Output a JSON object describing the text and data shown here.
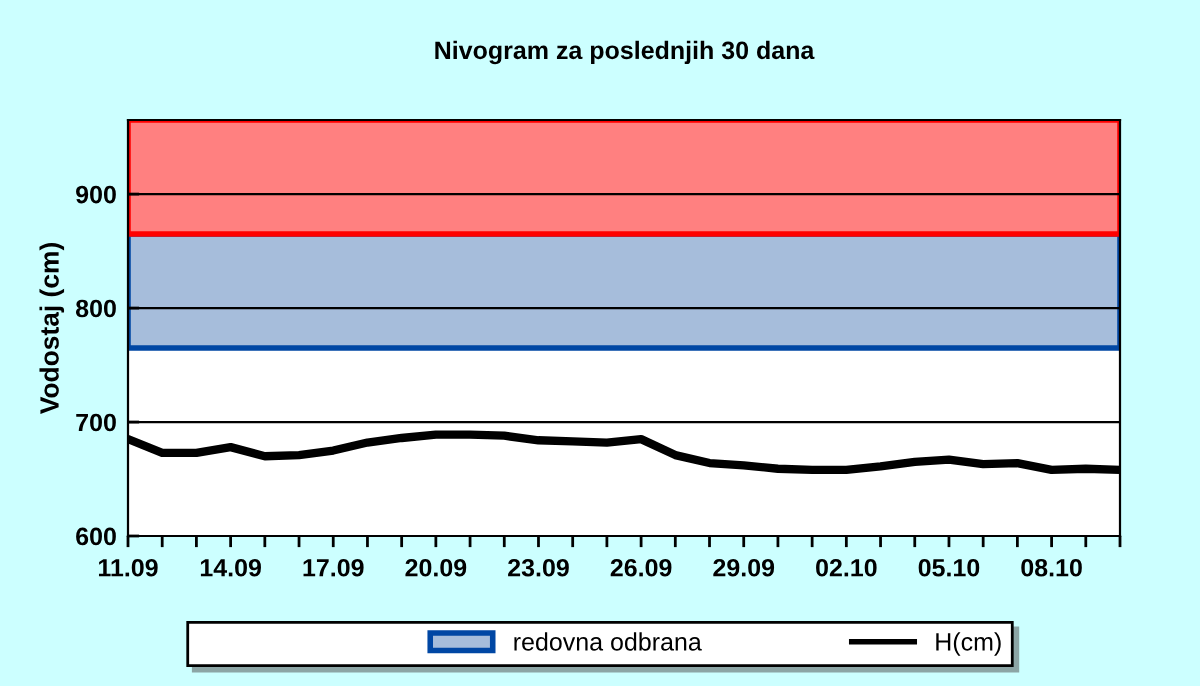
{
  "chart_data": {
    "type": "line",
    "title": "Nivogram za poslednjih 30 dana",
    "ylabel": "Vodostaj (cm)",
    "categories": [
      "11.09",
      null,
      null,
      "14.09",
      null,
      null,
      "17.09",
      null,
      null,
      "20.09",
      null,
      null,
      "23.09",
      null,
      null,
      "26.09",
      null,
      null,
      "29.09",
      null,
      null,
      "02.10",
      null,
      null,
      "05.10",
      null,
      null,
      "08.10",
      null,
      null
    ],
    "series": [
      {
        "name": "H(cm)",
        "color": "#000000",
        "values": [
          685,
          673,
          673,
          678,
          670,
          671,
          675,
          682,
          686,
          689,
          689,
          688,
          684,
          683,
          682,
          685,
          671,
          664,
          662,
          659,
          658,
          658,
          661,
          665,
          667,
          663,
          664,
          658,
          659,
          658
        ]
      }
    ],
    "bands": [
      {
        "axis": "y",
        "from": 600,
        "to": 765,
        "label": null,
        "color": "#ffffff"
      },
      {
        "axis": "y",
        "from": 765,
        "to": 865,
        "label": "redovna odbrana",
        "color": "#a6bddb"
      },
      {
        "axis": "y",
        "from": 865,
        "to": 965,
        "label": null,
        "color": "#ff8080"
      }
    ],
    "ylim": [
      600,
      965
    ],
    "yticks": [
      600,
      700,
      800,
      900
    ],
    "grid": "y",
    "legend": "bottom",
    "marker": "none",
    "line_style": "solid"
  }
}
